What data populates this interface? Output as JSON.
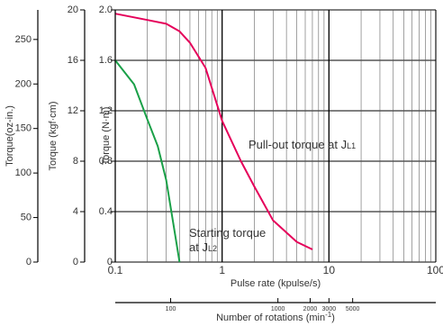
{
  "chart_data": {
    "type": "line",
    "title": "",
    "xlabel": "Pulse rate (kpulse/s)",
    "x_scale": "log",
    "xlim": [
      0.1,
      100
    ],
    "x_ticks": [
      "0.1",
      "1",
      "10",
      "100"
    ],
    "ylabel": "Torque (N·m)",
    "ylim": [
      0,
      2.0
    ],
    "y_ticks": [
      "0",
      "0.4",
      "0.8",
      "1.2",
      "1.6",
      "2.0"
    ],
    "grid": true,
    "series": [
      {
        "name": "Pull-out torque at JL1",
        "color": "#e5005a",
        "points": [
          [
            0.1,
            1.97
          ],
          [
            0.2,
            1.92
          ],
          [
            0.3,
            1.89
          ],
          [
            0.4,
            1.83
          ],
          [
            0.5,
            1.74
          ],
          [
            0.7,
            1.54
          ],
          [
            1.0,
            1.12
          ],
          [
            1.5,
            0.8
          ],
          [
            2.0,
            0.6
          ],
          [
            3.0,
            0.33
          ],
          [
            5.0,
            0.16
          ],
          [
            7.0,
            0.1
          ]
        ]
      },
      {
        "name": "Starting torque at JL2",
        "color": "#1aa048",
        "points": [
          [
            0.1,
            1.6
          ],
          [
            0.15,
            1.41
          ],
          [
            0.2,
            1.13
          ],
          [
            0.25,
            0.92
          ],
          [
            0.3,
            0.65
          ],
          [
            0.35,
            0.3
          ],
          [
            0.4,
            0.0
          ]
        ]
      }
    ],
    "annotations": {
      "pull_out_label_main": "Pull-out torque at J",
      "pull_out_label_sub": "L1",
      "starting_label_line1": "Starting torque",
      "starting_label_line2_main": "at J",
      "starting_label_line2_sub": "L2"
    },
    "secondary_axes": {
      "kgfcm": {
        "label": "Torque (kgf·cm)",
        "max": 20,
        "ticks": [
          [
            0,
            "0"
          ],
          [
            4,
            "4"
          ],
          [
            8,
            "8"
          ],
          [
            12,
            "12"
          ],
          [
            16,
            "16"
          ],
          [
            20,
            "20"
          ]
        ]
      },
      "ozin": {
        "label": "Torque(oz-in.)",
        "max": 283.2,
        "ticks": [
          [
            0,
            "0"
          ],
          [
            50,
            "50"
          ],
          [
            100,
            "100"
          ],
          [
            150,
            "150"
          ],
          [
            200,
            "200"
          ],
          [
            250,
            "250"
          ]
        ]
      },
      "rotations": {
        "label_main": "Number of rotations (min",
        "label_sup": "-1",
        "label_end": ")",
        "ticks": [
          [
            0.33,
            "100"
          ],
          [
            3.33,
            "1000"
          ],
          [
            6.67,
            "2000"
          ],
          [
            10,
            "3000"
          ],
          [
            16.67,
            "5000"
          ]
        ]
      }
    }
  }
}
